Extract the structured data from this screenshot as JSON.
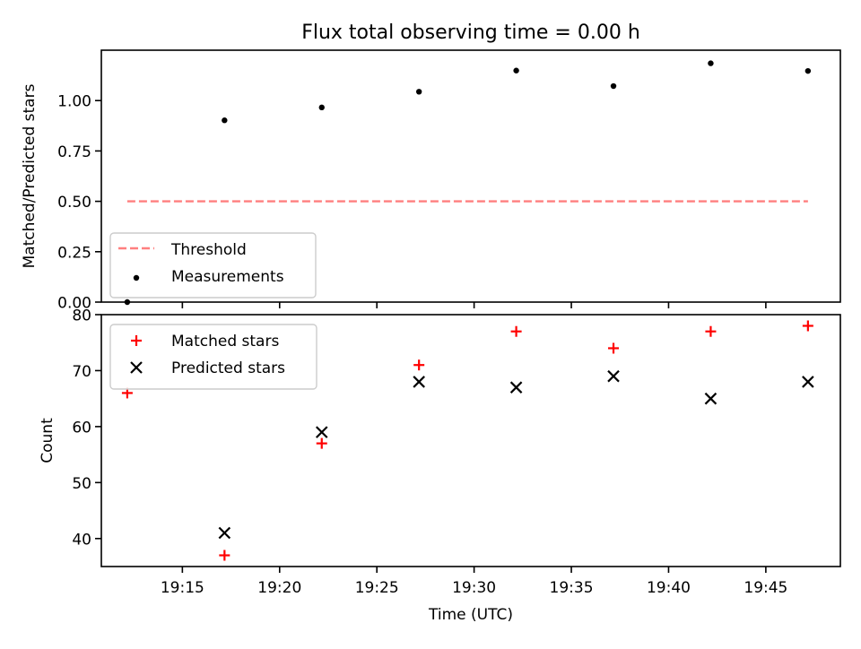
{
  "chart_data": [
    {
      "type": "scatter",
      "title": "Flux total observing time = 0.00 h",
      "xlabel": "",
      "ylabel": "Matched/Predicted stars",
      "ylim": [
        0,
        1.25
      ],
      "xlim": [
        "19:10:50",
        "19:48:50"
      ],
      "yticks": [
        "0.00",
        "0.25",
        "0.50",
        "0.75",
        "1.00"
      ],
      "grid": false,
      "legend_position": "lower-left",
      "series": [
        {
          "name": "Threshold",
          "kind": "line",
          "style": "dashed",
          "color": "#ff7f7f",
          "x": [
            "19:12:10",
            "19:47:10"
          ],
          "y": [
            0.5,
            0.5
          ]
        },
        {
          "name": "Measurements",
          "kind": "scatter",
          "marker": "dot",
          "color": "#000000",
          "x": [
            "19:12:10",
            "19:17:10",
            "19:22:10",
            "19:27:10",
            "19:32:10",
            "19:37:10",
            "19:42:10",
            "19:47:10"
          ],
          "y": [
            0.0,
            0.902,
            0.966,
            1.044,
            1.149,
            1.072,
            1.185,
            1.147
          ]
        }
      ]
    },
    {
      "type": "scatter",
      "title": "",
      "xlabel": "Time (UTC)",
      "ylabel": "Count",
      "ylim": [
        35,
        80
      ],
      "xlim": [
        "19:10:50",
        "19:48:50"
      ],
      "yticks": [
        "40",
        "50",
        "60",
        "70",
        "80"
      ],
      "xticks": [
        "19:15",
        "19:20",
        "19:25",
        "19:30",
        "19:35",
        "19:40",
        "19:45"
      ],
      "grid": false,
      "legend_position": "upper-left",
      "series": [
        {
          "name": "Matched stars",
          "kind": "scatter",
          "marker": "plus",
          "color": "#ff0000",
          "x": [
            "19:12:10",
            "19:17:10",
            "19:22:10",
            "19:27:10",
            "19:32:10",
            "19:37:10",
            "19:42:10",
            "19:47:10"
          ],
          "y": [
            66,
            37,
            57,
            71,
            77,
            74,
            77,
            78
          ]
        },
        {
          "name": "Predicted stars",
          "kind": "scatter",
          "marker": "x",
          "color": "#000000",
          "x": [
            "19:12:10",
            "19:17:10",
            "19:22:10",
            "19:27:10",
            "19:32:10",
            "19:37:10",
            "19:42:10",
            "19:47:10"
          ],
          "y": [
            null,
            41,
            59,
            68,
            67,
            69,
            65,
            68
          ]
        }
      ]
    }
  ]
}
